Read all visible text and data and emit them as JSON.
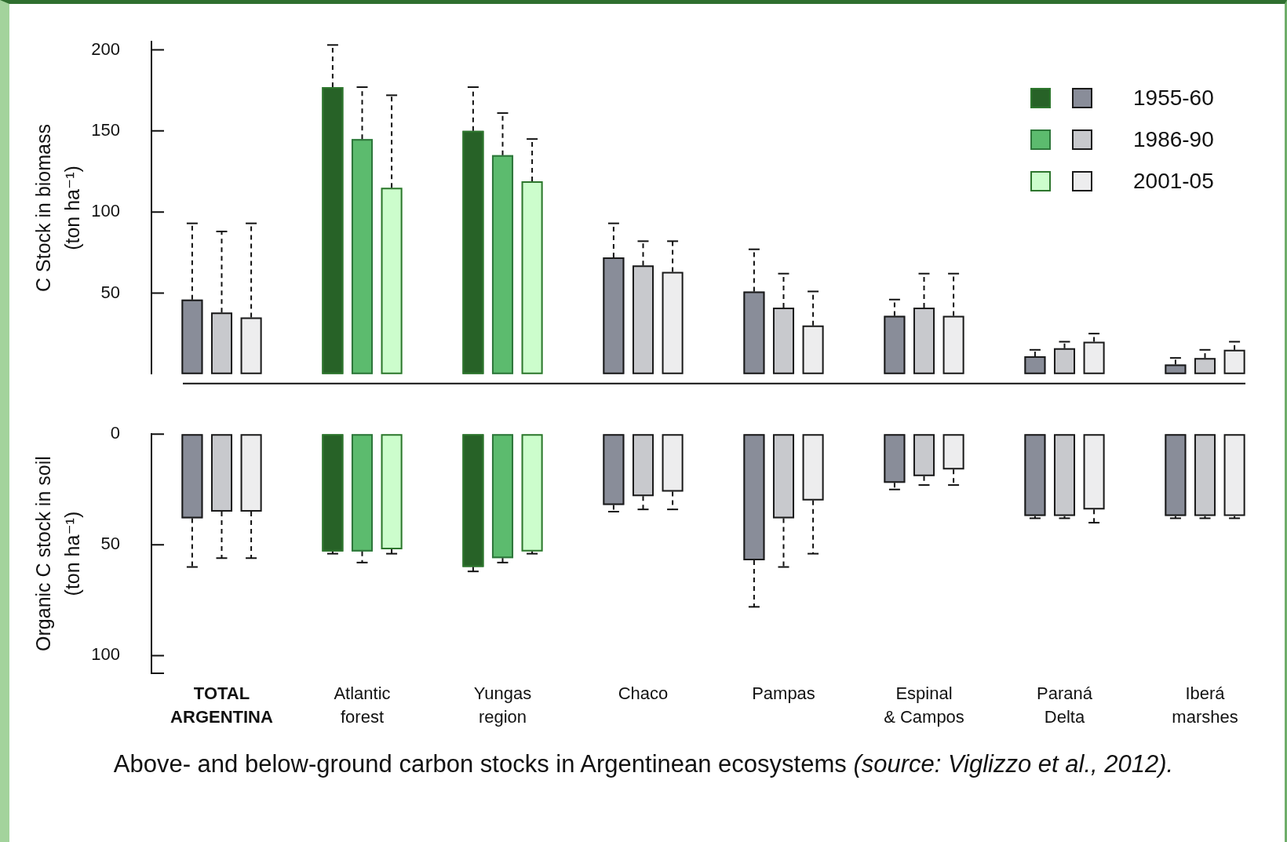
{
  "chart_data": [
    {
      "type": "bar",
      "ylabel": "C Stock in biomass (ton ha⁻¹)",
      "categories": [
        null,
        null,
        null,
        null,
        null,
        null,
        null,
        null
      ],
      "series": [
        {
          "name": "1955-60",
          "color": "#276227",
          "colors": [
            "#898d99",
            "#276227",
            "#276227",
            "#898d99",
            "#898d99",
            "#898d99",
            "#898d99",
            "#898d99"
          ],
          "values": [
            46,
            177,
            150,
            72,
            51,
            36,
            11,
            6
          ],
          "errors": [
            [
              46,
              93
            ],
            [
              177,
              203
            ],
            [
              150,
              177
            ],
            [
              72,
              93
            ],
            [
              51,
              77
            ],
            [
              36,
              46
            ],
            [
              11,
              15
            ],
            [
              6,
              10
            ]
          ]
        },
        {
          "name": "1986-90",
          "color": "#5cbb6e",
          "colors": [
            "#c8c9cd",
            "#5cbb6e",
            "#5cbb6e",
            "#c8c9cd",
            "#c8c9cd",
            "#c8c9cd",
            "#c8c9cd",
            "#c8c9cd"
          ],
          "values": [
            38,
            145,
            135,
            67,
            41,
            41,
            16,
            10
          ],
          "errors": [
            [
              38,
              88
            ],
            [
              145,
              177
            ],
            [
              135,
              161
            ],
            [
              67,
              82
            ],
            [
              41,
              62
            ],
            [
              41,
              62
            ],
            [
              16,
              20
            ],
            [
              10,
              15
            ]
          ]
        },
        {
          "name": "2001-05",
          "color": "#ccfdcc",
          "colors": [
            "#ededee",
            "#ccfdcc",
            "#ccfdcc",
            "#ededee",
            "#ededee",
            "#ededee",
            "#ededee",
            "#ededee"
          ],
          "values": [
            35,
            115,
            119,
            63,
            30,
            36,
            20,
            15
          ],
          "errors": [
            [
              35,
              93
            ],
            [
              115,
              172
            ],
            [
              119,
              145
            ],
            [
              63,
              82
            ],
            [
              30,
              51
            ],
            [
              36,
              62
            ],
            [
              20,
              25
            ],
            [
              15,
              20
            ]
          ]
        }
      ],
      "ylim": [
        0,
        205
      ],
      "yticks": [
        50,
        100,
        150,
        200
      ],
      "legend": "top right"
    },
    {
      "type": "bar",
      "ylabel": "Organic C stock in soil (ton ha⁻¹)",
      "categories": [
        "TOTAL ARGENTINA",
        "Atlantic forest",
        "Yungas region",
        "Chaco",
        "Pampas",
        "Espinal & Campos",
        "Paraná Delta",
        "Iberá marshes"
      ],
      "series": [
        {
          "colors": [
            "#898d99",
            "#276227",
            "#276227",
            "#898d99",
            "#898d99",
            "#898d99",
            "#898d99",
            "#898d99"
          ],
          "values": [
            38,
            53,
            60,
            32,
            57,
            22,
            37,
            37
          ],
          "errors": [
            [
              38,
              60
            ],
            [
              53,
              54
            ],
            [
              60,
              62
            ],
            [
              32,
              35
            ],
            [
              57,
              78
            ],
            [
              22,
              25
            ],
            [
              37,
              38
            ],
            [
              37,
              38
            ]
          ]
        },
        {
          "colors": [
            "#c8c9cd",
            "#5cbb6e",
            "#5cbb6e",
            "#c8c9cd",
            "#c8c9cd",
            "#c8c9cd",
            "#c8c9cd",
            "#c8c9cd"
          ],
          "values": [
            35,
            53,
            56,
            28,
            38,
            19,
            37,
            37
          ],
          "errors": [
            [
              35,
              56
            ],
            [
              53,
              58
            ],
            [
              56,
              58
            ],
            [
              28,
              34
            ],
            [
              38,
              60
            ],
            [
              19,
              23
            ],
            [
              37,
              38
            ],
            [
              37,
              38
            ]
          ]
        },
        {
          "colors": [
            "#ededee",
            "#ccfdcc",
            "#ccfdcc",
            "#ededee",
            "#ededee",
            "#ededee",
            "#ededee",
            "#ededee"
          ],
          "values": [
            35,
            52,
            53,
            26,
            30,
            16,
            34,
            37
          ],
          "errors": [
            [
              35,
              56
            ],
            [
              52,
              54
            ],
            [
              53,
              54
            ],
            [
              26,
              34
            ],
            [
              30,
              54
            ],
            [
              16,
              23
            ],
            [
              34,
              40
            ],
            [
              37,
              38
            ]
          ]
        }
      ],
      "ylim": [
        108,
        0
      ],
      "yticks": [
        0,
        50,
        100,
        {
          "value": 108,
          "label": null
        }
      ],
      "annotations": [
        "Above- and below-ground carbon stocks in Argentinean ecosystems",
        "(source: Viglizzo et al., 2012)."
      ]
    }
  ]
}
